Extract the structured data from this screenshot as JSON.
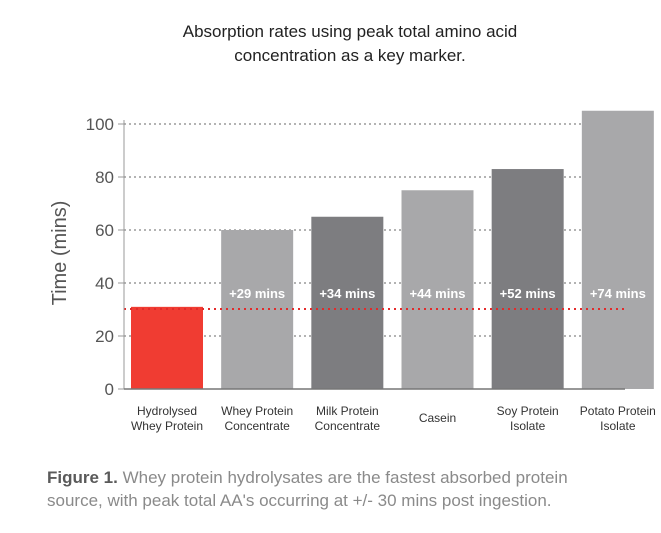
{
  "chart_data": {
    "type": "bar",
    "title_lines": [
      "Absorption rates using peak total amino acid",
      "concentration as a key marker."
    ],
    "ylabel": "Time (mins)",
    "ylim": [
      0,
      100
    ],
    "yticks": [
      0,
      20,
      40,
      60,
      80,
      100
    ],
    "grid": "dotted horizontal",
    "categories": [
      [
        "Hydrolysed",
        "Whey Protein"
      ],
      [
        "Whey Protein",
        "Concentrate"
      ],
      [
        "Milk Protein",
        "Concentrate"
      ],
      [
        "Casein"
      ],
      [
        "Soy Protein",
        "Isolate"
      ],
      [
        "Potato Protein",
        "Isolate"
      ]
    ],
    "values": [
      31,
      60,
      65,
      75,
      83,
      105
    ],
    "bar_labels": [
      "",
      "+29 mins",
      "+34 mins",
      "+44 mins",
      "+52 mins",
      "+74 mins"
    ],
    "bar_colors": [
      "#f03c32",
      "#a8a8aa",
      "#7d7d80",
      "#a8a8aa",
      "#7d7d80",
      "#a8a8aa"
    ],
    "reference_line": {
      "value": 31,
      "color": "#e32a2a",
      "style": "dotted"
    }
  },
  "caption": {
    "label": "Figure 1.",
    "text_line1": " Whey protein hydrolysates are the fastest absorbed protein",
    "text_line2": "source, with peak total AA's occurring at +/- 30 mins post ingestion."
  }
}
